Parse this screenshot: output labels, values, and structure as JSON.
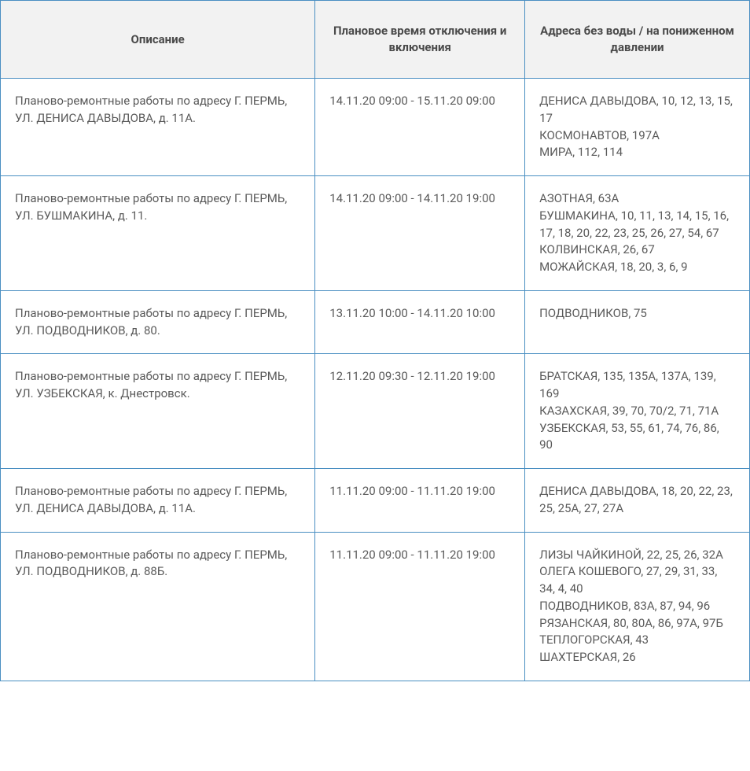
{
  "table": {
    "columns": [
      "Описание",
      "Плановое время отключения и включения",
      "Адреса без воды / на пониженном давлении"
    ],
    "rows": [
      {
        "description": "Планово-ремонтные работы по адресу Г. ПЕРМЬ, УЛ. ДЕНИСА ДАВЫДОВА, д. 11А.",
        "time": "14.11.20 09:00 - 15.11.20 09:00",
        "addresses": [
          "ДЕНИСА ДАВЫДОВА, 10, 12, 13, 15, 17",
          "КОСМОНАВТОВ, 197А",
          "МИРА, 112, 114"
        ]
      },
      {
        "description": "Планово-ремонтные работы по адресу Г. ПЕРМЬ, УЛ. БУШМАКИНА, д. 11.",
        "time": "14.11.20 09:00 - 14.11.20 19:00",
        "addresses": [
          "АЗОТНАЯ, 63А",
          "БУШМАКИНА, 10, 11, 13, 14, 15, 16, 17, 18, 20, 22, 23, 25, 26, 27, 54, 67",
          "КОЛВИНСКАЯ, 26, 67",
          "МОЖАЙСКАЯ, 18, 20, 3, 6, 9"
        ]
      },
      {
        "description": "Планово-ремонтные работы по адресу Г. ПЕРМЬ, УЛ. ПОДВОДНИКОВ, д. 80.",
        "time": "13.11.20 10:00 - 14.11.20 10:00",
        "addresses": [
          "ПОДВОДНИКОВ, 75"
        ]
      },
      {
        "description": "Планово-ремонтные работы по адресу Г. ПЕРМЬ, УЛ. УЗБЕКСКАЯ, к. Днестровск.",
        "time": "12.11.20 09:30 - 12.11.20 19:00",
        "addresses": [
          "БРАТСКАЯ, 135, 135А, 137А, 139, 169",
          "КАЗАХСКАЯ, 39, 70, 70/2, 71, 71А",
          "УЗБЕКСКАЯ, 53, 55, 61, 74, 76, 86, 90"
        ]
      },
      {
        "description": "Планово-ремонтные работы по адресу Г. ПЕРМЬ, УЛ. ДЕНИСА ДАВЫДОВА, д. 11А.",
        "time": "11.11.20 09:00 - 11.11.20 19:00",
        "addresses": [
          "ДЕНИСА ДАВЫДОВА, 18, 20, 22, 23, 25, 25А, 27, 27А"
        ]
      },
      {
        "description": "Планово-ремонтные работы по адресу Г. ПЕРМЬ, УЛ. ПОДВОДНИКОВ, д. 88Б.",
        "time": "11.11.20 09:00 - 11.11.20 19:00",
        "addresses": [
          "ЛИЗЫ ЧАЙКИНОЙ, 22, 25, 26, 32А",
          "ОЛЕГА КОШЕВОГО, 27, 29, 31, 33, 34, 4, 40",
          "ПОДВОДНИКОВ, 83А, 87, 94, 96",
          "РЯЗАНСКАЯ, 80, 80А, 86, 97А, 97Б",
          "ТЕПЛОГОРСКАЯ, 43",
          "ШАХТЕРСКАЯ, 26"
        ]
      }
    ],
    "style": {
      "header_background": "#f2f2f2",
      "border_color": "#4a8fc2",
      "text_color": "#5a5a5a",
      "header_text_color": "#4a4a4a",
      "font_size": 15,
      "header_font_weight": 700
    }
  }
}
